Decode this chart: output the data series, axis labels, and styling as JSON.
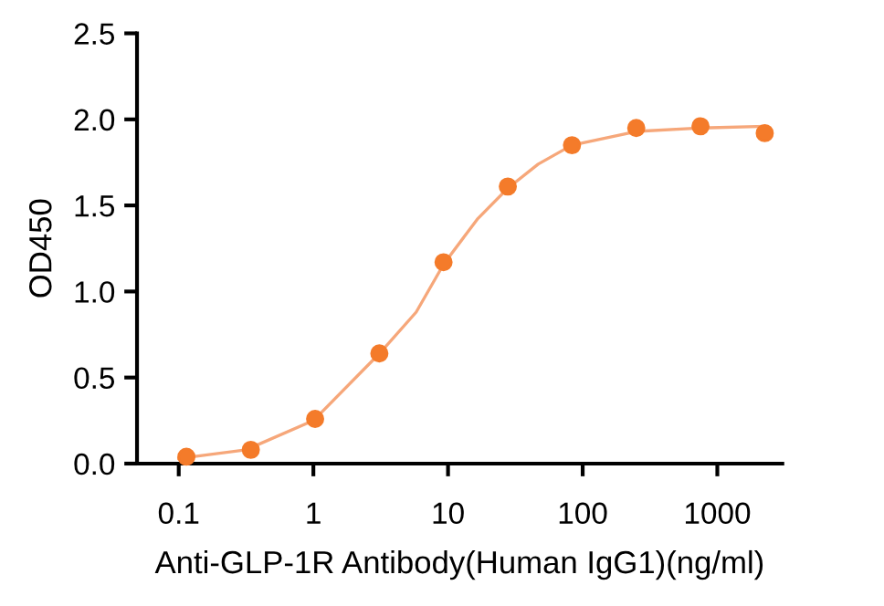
{
  "chart_data": {
    "type": "scatter",
    "xlabel": "Anti-GLP-1R Antibody(Human IgG1)(ng/ml)",
    "ylabel": "OD450",
    "log": "x",
    "xlim": [
      0.049,
      3040
    ],
    "xticks": [
      0.1,
      1,
      10,
      100,
      1000
    ],
    "ylim": [
      0,
      2.5
    ],
    "yticks": [
      {
        "value": 0,
        "label": "0.0"
      },
      0.5,
      {
        "value": 1,
        "label": "1.0"
      },
      1.5,
      {
        "value": 2,
        "label": "2.0"
      },
      2.5
    ],
    "grid": false,
    "legend": false,
    "series": [
      {
        "type": "line",
        "color": "#f6a77a",
        "marker": "none",
        "x": [
          0.1,
          0.316,
          1,
          3.1,
          5.8,
          9.3,
          16.5,
          27.8,
          46.7,
          83,
          250,
          750,
          2250
        ],
        "values": [
          0.03,
          0.08,
          0.25,
          0.64,
          0.88,
          1.16,
          1.42,
          1.6,
          1.74,
          1.85,
          1.93,
          1.95,
          1.96
        ]
      },
      {
        "color": "#f47b2a",
        "marker": "circle",
        "x": [
          0.114,
          0.343,
          1.03,
          3.09,
          9.26,
          27.8,
          83.3,
          250,
          750,
          2250
        ],
        "values": [
          0.04,
          0.08,
          0.26,
          0.64,
          1.17,
          1.61,
          1.85,
          1.95,
          1.96,
          1.92
        ]
      }
    ]
  }
}
